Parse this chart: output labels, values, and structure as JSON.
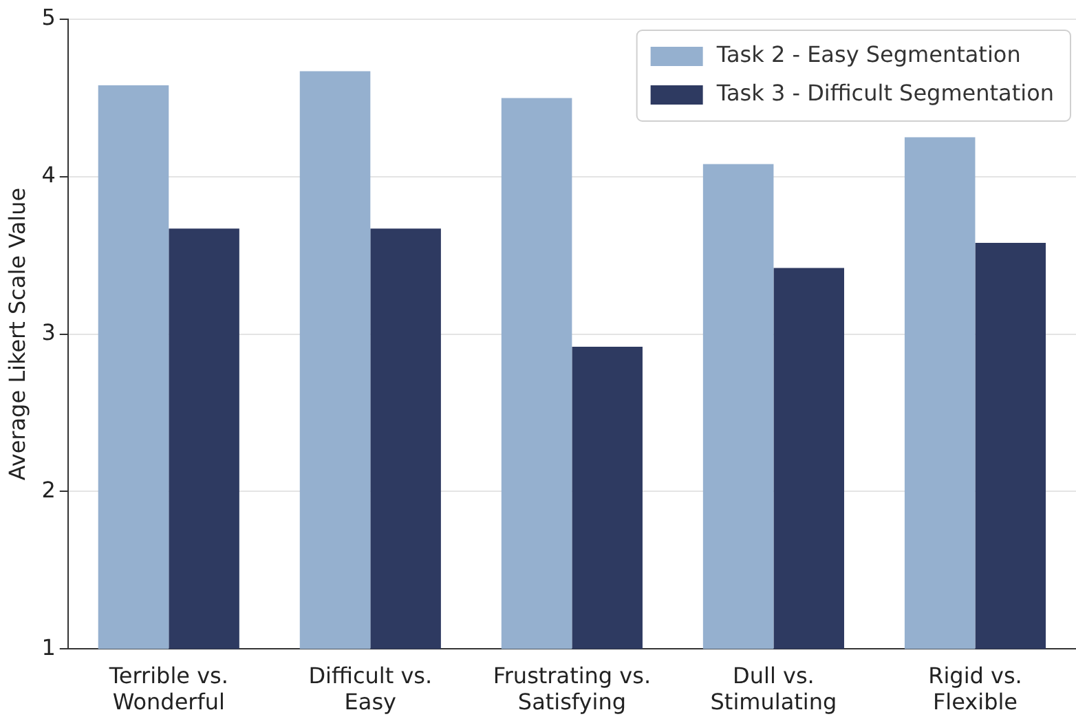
{
  "chart_data": {
    "type": "bar",
    "ylabel": "Average Likert Scale Value",
    "categories": [
      "Terrible vs.\nWonderful",
      "Difficult vs.\nEasy",
      "Frustrating vs.\nSatisfying",
      "Dull vs.\nStimulating",
      "Rigid vs.\nFlexible"
    ],
    "series": [
      {
        "name": "Task 2 - Easy Segmentation",
        "color": "#95b0cf",
        "values": [
          4.58,
          4.67,
          4.5,
          4.08,
          4.25
        ]
      },
      {
        "name": "Task 3 - Difficult Segmentation",
        "color": "#2e3a61",
        "values": [
          3.67,
          3.67,
          2.92,
          3.42,
          3.58
        ]
      }
    ],
    "ylim": [
      1,
      5
    ],
    "yticks": [
      1,
      2,
      3,
      4,
      5
    ],
    "grid": "y",
    "legend": "top right"
  }
}
